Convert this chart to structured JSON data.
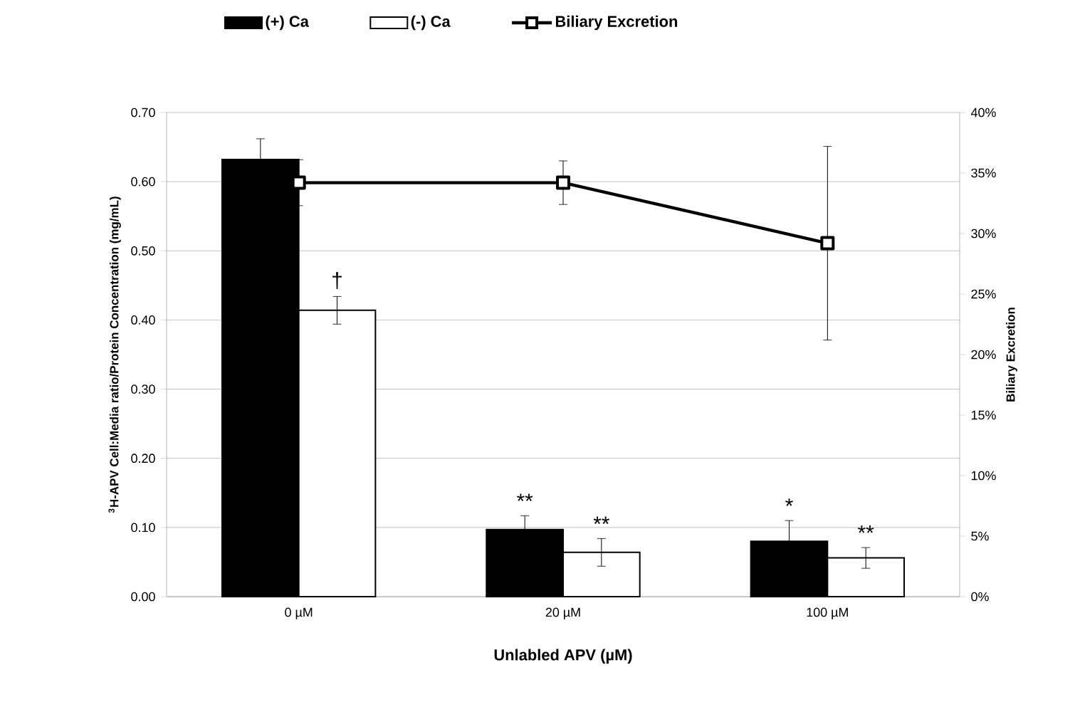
{
  "chart_data": {
    "type": "bar",
    "categories": [
      "0 µM",
      "20 µM",
      "100 µM"
    ],
    "xlabel": "Unlabled APV (µM)",
    "ylabel": "$^{3}$H-APV Cell:Media ratio/Protein Concentration (mg/mL)",
    "y2label": "Biliary Excretion",
    "series": [
      {
        "name": "(+) Ca",
        "color": "#000000",
        "values": [
          0.632,
          0.097,
          0.08
        ],
        "errors": [
          0.03,
          0.02,
          0.03
        ]
      },
      {
        "name": "(-) Ca",
        "color": "#ffffff",
        "values": [
          0.414,
          0.064,
          0.056
        ],
        "errors": [
          0.02,
          0.02,
          0.015
        ]
      },
      {
        "name": "Biliary Excretion",
        "type": "line",
        "axis": "y2",
        "color": "#000000",
        "values": [
          34.2,
          34.2,
          29.2
        ],
        "errors": [
          1.9,
          1.8,
          8.0
        ]
      }
    ],
    "ylim": [
      0,
      0.7
    ],
    "yticks": [
      {
        "value": 0,
        "label": "0.00"
      },
      {
        "value": 0.1,
        "label": "0.10"
      },
      {
        "value": 0.2,
        "label": "0.20"
      },
      {
        "value": 0.3,
        "label": "0.30"
      },
      {
        "value": 0.4,
        "label": "0.40"
      },
      {
        "value": 0.5,
        "label": "0.50"
      },
      {
        "value": 0.6,
        "label": "0.60"
      },
      {
        "value": 0.7,
        "label": "0.70"
      }
    ],
    "y2lim": [
      0,
      40
    ],
    "y2ticks": [
      {
        "value": 0,
        "label": "0%"
      },
      {
        "value": 5,
        "label": "5%"
      },
      {
        "value": 10,
        "label": "10%"
      },
      {
        "value": 15,
        "label": "15%"
      },
      {
        "value": 20,
        "label": "20%"
      },
      {
        "value": 25,
        "label": "25%"
      },
      {
        "value": 30,
        "label": "30%"
      },
      {
        "value": 35,
        "label": "35%"
      },
      {
        "value": 40,
        "label": "40%"
      }
    ],
    "annotations": [
      {
        "text": "†",
        "x": "0 µM",
        "y": 0.414
      },
      {
        "text": "**",
        "x": "20 µM",
        "y": 0.097
      },
      {
        "text": "**",
        "x": "20 µM",
        "y": 0.064
      },
      {
        "text": "*",
        "x": "100 µM",
        "y": 0.08
      },
      {
        "text": "**",
        "x": "100 µM",
        "y": 0.056
      }
    ],
    "grid": "y",
    "legend": "top",
    "marker": "square",
    "line_style": "solid"
  }
}
